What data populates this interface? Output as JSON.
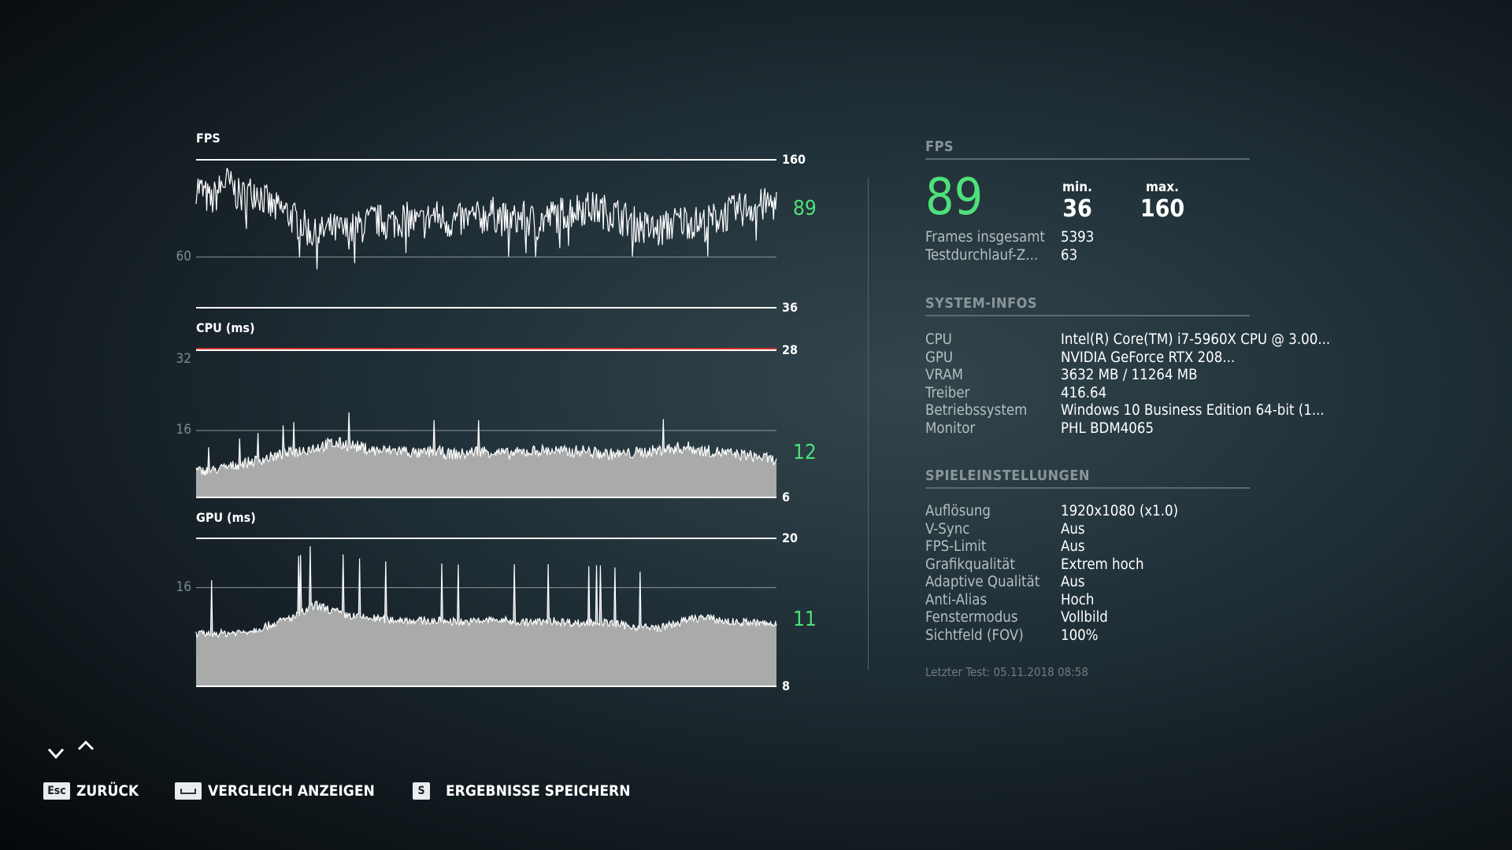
{
  "chart_data": [
    {
      "type": "line",
      "title": "FPS",
      "scale": "log",
      "ylim": [
        36,
        160
      ],
      "top_label": "160",
      "bottom_label": "36",
      "grid_label": "60",
      "grid_value": 60,
      "current": "89",
      "color": "#ffffff",
      "values": [
        125,
        105,
        130,
        110,
        120,
        100,
        95,
        85,
        75,
        80,
        78,
        82,
        88,
        85,
        90,
        84,
        92,
        86,
        88,
        90,
        94,
        86,
        90,
        85,
        92,
        96,
        100,
        98,
        94,
        88,
        82,
        78,
        85,
        88,
        84,
        90,
        95,
        100,
        102,
        104
      ]
    },
    {
      "type": "area",
      "title": "CPU (ms)",
      "ylim": [
        6,
        28
      ],
      "top_label": "28",
      "bottom_label": "6",
      "grid_label": "16",
      "grid_value": 16,
      "extra_left_label": "32",
      "limit_line_color": "#d0342c",
      "current": "12",
      "color": "#ffffff",
      "values": [
        10,
        10,
        10.5,
        11,
        11.5,
        12,
        12.5,
        13,
        13.5,
        14,
        14,
        13.5,
        13,
        13,
        13,
        12.5,
        13,
        12.5,
        12.5,
        13,
        12.8,
        12.5,
        12.8,
        13,
        13,
        12.8,
        13,
        12.6,
        12.5,
        12.5,
        12.8,
        13,
        13.3,
        13.5,
        13,
        12.8,
        12.5,
        12.3,
        12,
        11.5
      ]
    },
    {
      "type": "area",
      "title": "GPU (ms)",
      "ylim": [
        8,
        20
      ],
      "top_label": "20",
      "bottom_label": "8",
      "grid_label": "16",
      "grid_value": 16,
      "current": "11",
      "color": "#ffffff",
      "values": [
        12.2,
        12.3,
        12.3,
        12.4,
        12.6,
        13,
        13.4,
        13.8,
        14.6,
        14.2,
        13.8,
        13.6,
        13.5,
        13.4,
        13.4,
        13.3,
        13.3,
        13.3,
        13.2,
        13.3,
        13.4,
        13.3,
        13.2,
        13.2,
        13.3,
        13.2,
        13.1,
        13.2,
        13.1,
        12.9,
        12.8,
        12.7,
        13,
        13.4,
        13.6,
        13.4,
        13.2,
        13.2,
        13.1,
        13
      ]
    }
  ],
  "fps": {
    "section": "FPS",
    "current": "89",
    "min_label": "min.",
    "min": "36",
    "max_label": "max.",
    "max": "160",
    "rows": [
      {
        "k": "Frames insgesamt",
        "v": "5393"
      },
      {
        "k": "Testdurchlauf-Z...",
        "v": "63"
      }
    ]
  },
  "system": {
    "section": "SYSTEM-INFOS",
    "rows": [
      {
        "k": "CPU",
        "v": "Intel(R) Core(TM) i7-5960X CPU @ 3.00..."
      },
      {
        "k": "GPU",
        "v": "NVIDIA GeForce RTX 208..."
      },
      {
        "k": "VRAM",
        "v": "3632 MB / 11264 MB"
      },
      {
        "k": "Treiber",
        "v": "416.64"
      },
      {
        "k": "Betriebssystem",
        "v": "Windows 10 Business Edition 64-bit (1..."
      },
      {
        "k": "Monitor",
        "v": "PHL BDM4065"
      }
    ]
  },
  "game": {
    "section": "SPIELEINSTELLUNGEN",
    "rows": [
      {
        "k": "Auflösung",
        "v": "1920x1080 (x1.0)"
      },
      {
        "k": "V-Sync",
        "v": "Aus"
      },
      {
        "k": "FPS-Limit",
        "v": "Aus"
      },
      {
        "k": "Grafikqualität",
        "v": "Extrem hoch"
      },
      {
        "k": "Adaptive Qualität",
        "v": "Aus"
      },
      {
        "k": "Anti-Alias",
        "v": "Hoch"
      },
      {
        "k": "Fenstermodus",
        "v": "Vollbild"
      },
      {
        "k": "Sichtfeld (FOV)",
        "v": "100%"
      }
    ]
  },
  "last_test": "Letzter Test: 05.11.2018 08:58",
  "footer": {
    "back_key": "Esc",
    "back": "ZURÜCK",
    "compare_key": "space-key-icon",
    "compare": "VERGLEICH ANZEIGEN",
    "save_key": "S",
    "save": "ERGEBNISSE SPEICHERN"
  },
  "accent": "#4ee07a"
}
